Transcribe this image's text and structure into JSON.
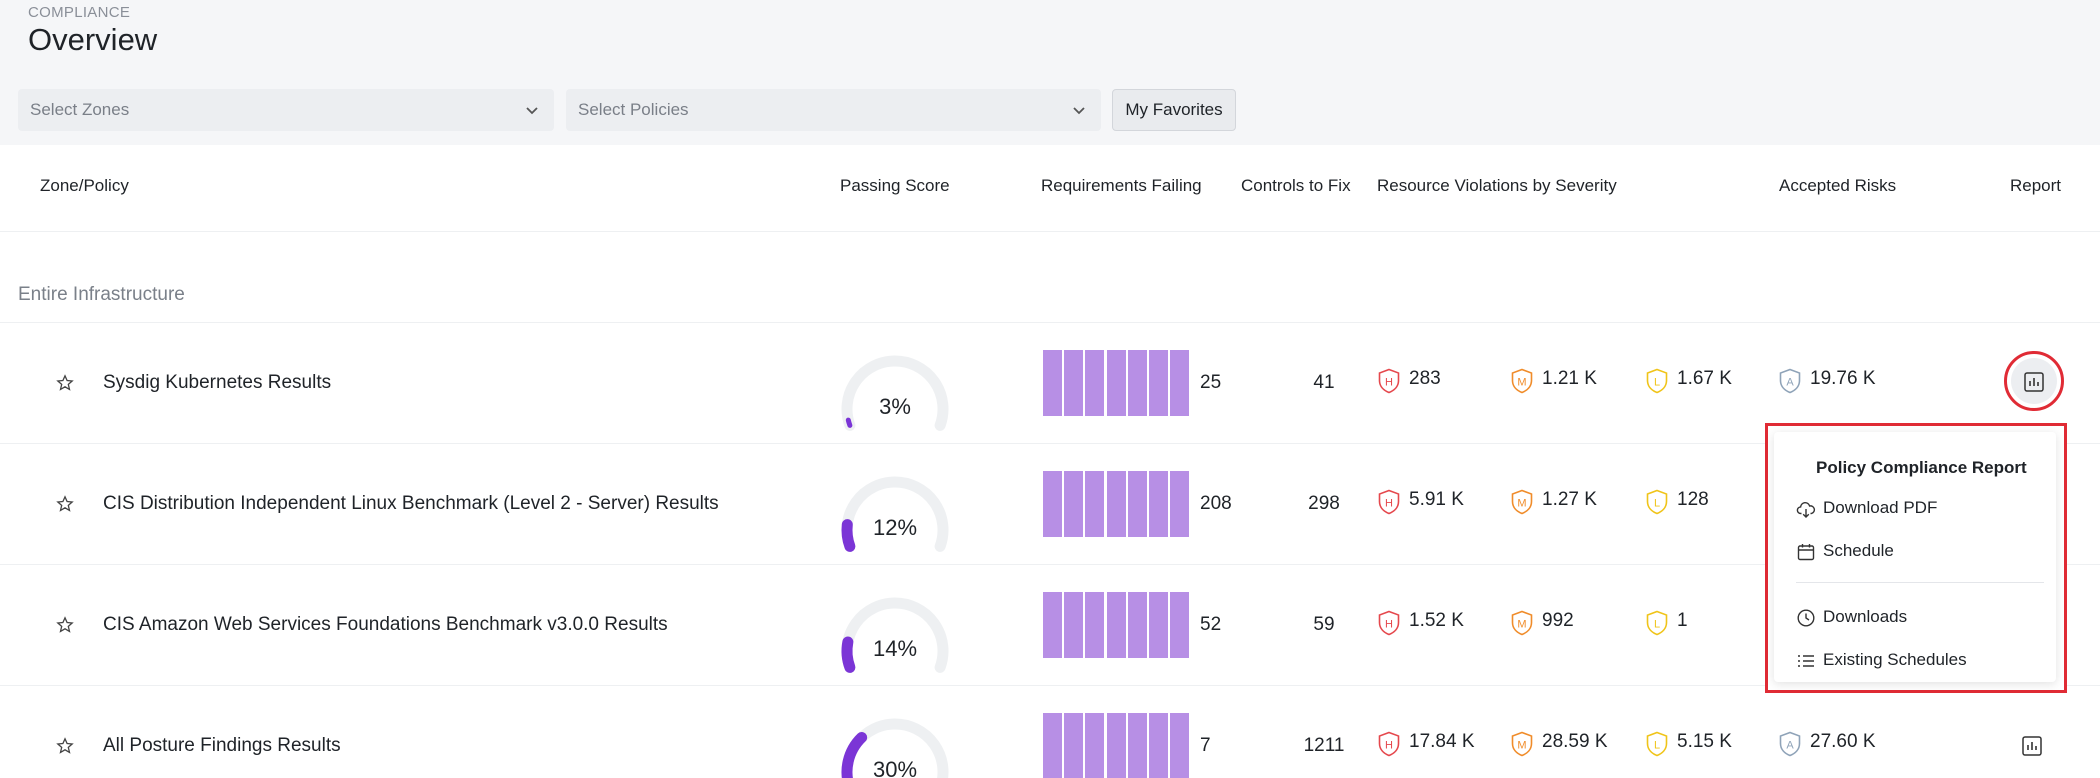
{
  "header": {
    "section": "COMPLIANCE",
    "title": "Overview"
  },
  "filters": {
    "zones_placeholder": "Select Zones",
    "policies_placeholder": "Select Policies",
    "favorites_label": "My Favorites"
  },
  "table": {
    "columns": {
      "zone_policy": "Zone/Policy",
      "passing_score": "Passing Score",
      "requirements_failing": "Requirements Failing",
      "controls_to_fix": "Controls to Fix",
      "resource_violations": "Resource Violations by Severity",
      "accepted_risks": "Accepted Risks",
      "report": "Report"
    },
    "group_label": "Entire Infrastructure",
    "rows": [
      {
        "name": "Sysdig Kubernetes Results",
        "score": "3%",
        "score_fraction": 0.03,
        "requirements_failing": "25",
        "controls_to_fix": "41",
        "high": "283",
        "medium": "1.21 K",
        "low": "1.67 K",
        "accepted": "19.76 K"
      },
      {
        "name": "CIS Distribution Independent Linux Benchmark (Level 2 - Server) Results",
        "score": "12%",
        "score_fraction": 0.12,
        "requirements_failing": "208",
        "controls_to_fix": "298",
        "high": "5.91 K",
        "medium": "1.27 K",
        "low": "128",
        "accepted": ""
      },
      {
        "name": "CIS Amazon Web Services Foundations Benchmark v3.0.0 Results",
        "score": "14%",
        "score_fraction": 0.14,
        "requirements_failing": "52",
        "controls_to_fix": "59",
        "high": "1.52 K",
        "medium": "992",
        "low": "1",
        "accepted": ""
      },
      {
        "name": "All Posture Findings Results",
        "score": "30%",
        "score_fraction": 0.3,
        "requirements_failing": "7",
        "controls_to_fix": "1211",
        "high": "17.84 K",
        "medium": "28.59 K",
        "low": "5.15 K",
        "accepted": "27.60 K"
      }
    ]
  },
  "severity_letters": {
    "high": "H",
    "medium": "M",
    "low": "L",
    "accepted": "A"
  },
  "report_menu": {
    "title": "Policy Compliance Report",
    "download_pdf": "Download PDF",
    "schedule": "Schedule",
    "downloads": "Downloads",
    "existing_schedules": "Existing Schedules"
  },
  "colors": {
    "accent_purple": "#7b35d6",
    "bar_purple": "#b78fe5",
    "high": "#e5484d",
    "medium": "#f08c2a",
    "low": "#f0c419",
    "accepted": "#8fa3b8",
    "highlight_red": "#e02b35"
  }
}
